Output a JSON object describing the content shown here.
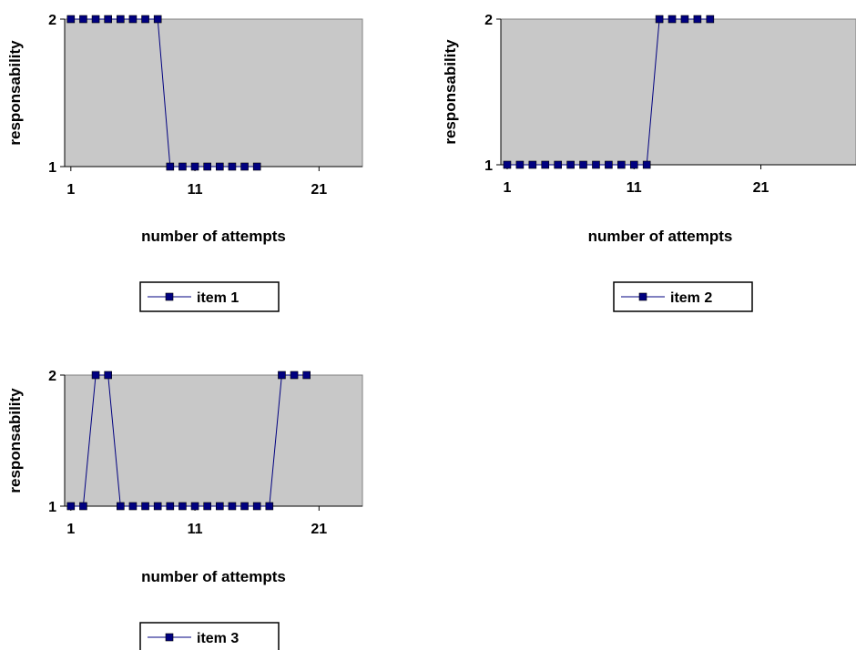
{
  "chart_data": [
    {
      "type": "line",
      "xlabel": "number of attempts",
      "ylabel": "responsability",
      "xticks": [
        1,
        11,
        21
      ],
      "yticks": [
        1,
        2
      ],
      "xlim": [
        0.5,
        24.5
      ],
      "ylim": [
        1,
        2
      ],
      "grid": false,
      "legend_position": "below",
      "plot_background": "#c8c8c8",
      "series": [
        {
          "name": "item  1",
          "color": "#000080",
          "x": [
            1,
            2,
            3,
            4,
            5,
            6,
            7,
            8,
            9,
            10,
            11,
            12,
            13,
            14,
            15,
            16
          ],
          "y": [
            2,
            2,
            2,
            2,
            2,
            2,
            2,
            2,
            1,
            1,
            1,
            1,
            1,
            1,
            1,
            1
          ]
        }
      ]
    },
    {
      "type": "line",
      "xlabel": "number of attempts",
      "ylabel": "responsability",
      "xticks": [
        1,
        11,
        21
      ],
      "yticks": [
        1,
        2
      ],
      "xlim": [
        0.5,
        28.5
      ],
      "ylim": [
        1,
        2
      ],
      "grid": false,
      "legend_position": "below",
      "plot_background": "#c8c8c8",
      "series": [
        {
          "name": "item  2",
          "color": "#000080",
          "x": [
            1,
            2,
            3,
            4,
            5,
            6,
            7,
            8,
            9,
            10,
            11,
            12,
            13,
            14,
            15,
            16,
            17
          ],
          "y": [
            1,
            1,
            1,
            1,
            1,
            1,
            1,
            1,
            1,
            1,
            1,
            1,
            2,
            2,
            2,
            2,
            2
          ]
        }
      ]
    },
    {
      "type": "line",
      "xlabel": "number of attempts",
      "ylabel": "responsability",
      "xticks": [
        1,
        11,
        21
      ],
      "yticks": [
        1,
        2
      ],
      "xlim": [
        0.5,
        24.5
      ],
      "ylim": [
        1,
        2
      ],
      "grid": false,
      "legend_position": "below",
      "plot_background": "#c8c8c8",
      "series": [
        {
          "name": "item  3",
          "color": "#000080",
          "x": [
            1,
            2,
            3,
            4,
            5,
            6,
            7,
            8,
            9,
            10,
            11,
            12,
            13,
            14,
            15,
            16,
            17,
            18,
            19,
            20
          ],
          "y": [
            1,
            1,
            2,
            2,
            1,
            1,
            1,
            1,
            1,
            1,
            1,
            1,
            1,
            1,
            1,
            1,
            1,
            2,
            2,
            2
          ]
        }
      ]
    }
  ]
}
